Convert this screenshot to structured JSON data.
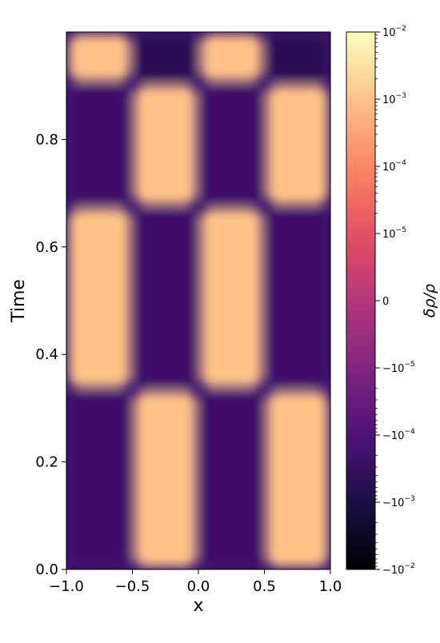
{
  "chart_data": {
    "type": "heatmap",
    "xlabel": "x",
    "ylabel": "Time",
    "xlim": [
      -1.0,
      1.0
    ],
    "ylim": [
      0.0,
      1.0
    ],
    "x_ticks": [
      {
        "value": -1.0,
        "label": "−1.0"
      },
      {
        "value": -0.5,
        "label": "−0.5"
      },
      {
        "value": 0.0,
        "label": "0.0"
      },
      {
        "value": 0.5,
        "label": "0.5"
      },
      {
        "value": 1.0,
        "label": "1.0"
      }
    ],
    "y_ticks": [
      {
        "value": 0.0,
        "label": "0.0"
      },
      {
        "value": 0.2,
        "label": "0.2"
      },
      {
        "value": 0.4,
        "label": "0.4"
      },
      {
        "value": 0.6,
        "label": "0.6"
      },
      {
        "value": 0.8,
        "label": "0.8"
      }
    ],
    "colorbar": {
      "label": "δρ/ρ",
      "scale": "symlog",
      "linthresh": 1e-05,
      "range": [
        -0.01,
        0.01
      ],
      "colormap": "magma",
      "ticks": [
        {
          "value": 0.01,
          "base": "10",
          "exp": "−2"
        },
        {
          "value": 0.001,
          "base": "10",
          "exp": "−3"
        },
        {
          "value": 0.0001,
          "base": "10",
          "exp": "−4"
        },
        {
          "value": 1e-05,
          "base": "10",
          "exp": "−5"
        },
        {
          "value": 0,
          "base": "0",
          "exp": ""
        },
        {
          "value": -1e-05,
          "base": "−10",
          "exp": "−5"
        },
        {
          "value": -0.0001,
          "base": "−10",
          "exp": "−4"
        },
        {
          "value": -0.001,
          "base": "−10",
          "exp": "−3"
        },
        {
          "value": -0.01,
          "base": "−10",
          "exp": "−2"
        }
      ]
    },
    "x_segments": [
      {
        "x0": -1.0,
        "x1": -0.5
      },
      {
        "x0": -0.5,
        "x1": 0.0
      },
      {
        "x0": 0.0,
        "x1": 0.5
      },
      {
        "x0": 0.5,
        "x1": 1.0
      }
    ],
    "time_bands": [
      {
        "t0": 0.0,
        "t1": 0.335,
        "values": [
          -0.0002,
          0.001,
          -0.0002,
          0.001
        ]
      },
      {
        "t0": 0.335,
        "t1": 0.675,
        "values": [
          0.001,
          -0.0002,
          0.001,
          -0.0002
        ]
      },
      {
        "t0": 0.675,
        "t1": 0.905,
        "values": [
          -0.0002,
          0.001,
          -0.0002,
          0.001
        ]
      },
      {
        "t0": 0.905,
        "t1": 1.0,
        "values": [
          0.001,
          -0.0005,
          0.001,
          -0.0005
        ]
      }
    ],
    "grid": false
  }
}
